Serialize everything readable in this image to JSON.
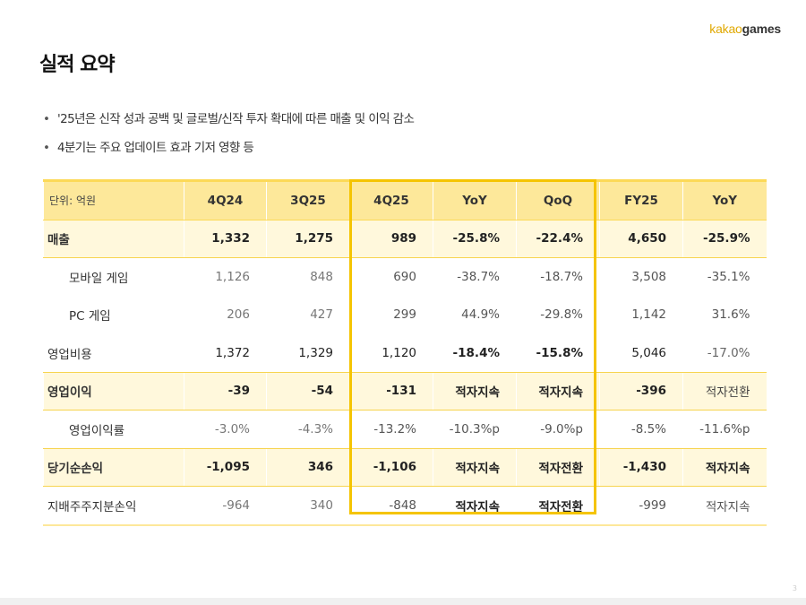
{
  "brand": {
    "logo_part1": "kakao",
    "logo_part2": "games"
  },
  "page_title": "실적 요약",
  "bullets": [
    "'25년은 신작 성과 공백 및 글로벌/신작 투자 확대에 따른 매출 및 이익 감소",
    "4분기는 주요 업데이트 효과 기저 영향 등"
  ],
  "table": {
    "unit_label": "단위: 억원",
    "columns": [
      "4Q24",
      "3Q25",
      "4Q25",
      "YoY",
      "QoQ",
      "FY25",
      "YoY"
    ],
    "rows": [
      {
        "label": "매출",
        "values": [
          "1,332",
          "1,275",
          "989",
          "-25.8%",
          "-22.4%",
          "4,650",
          "-25.9%"
        ]
      },
      {
        "label": "모바일 게임",
        "values": [
          "1,126",
          "848",
          "690",
          "-38.7%",
          "-18.7%",
          "3,508",
          "-35.1%"
        ]
      },
      {
        "label": "PC 게임",
        "values": [
          "206",
          "427",
          "299",
          "44.9%",
          "-29.8%",
          "1,142",
          "31.6%"
        ]
      },
      {
        "label": "영업비용",
        "values": [
          "1,372",
          "1,329",
          "1,120",
          "-18.4%",
          "-15.8%",
          "5,046",
          "-17.0%"
        ]
      },
      {
        "label": "영업이익",
        "values": [
          "-39",
          "-54",
          "-131",
          "적자지속",
          "적자지속",
          "-396",
          "적자전환"
        ]
      },
      {
        "label": "영업이익률",
        "values": [
          "-3.0%",
          "-4.3%",
          "-13.2%",
          "-10.3%p",
          "-9.0%p",
          "-8.5%",
          "-11.6%p"
        ]
      },
      {
        "label": "당기순손익",
        "values": [
          "-1,095",
          "346",
          "-1,106",
          "적자지속",
          "적자전환",
          "-1,430",
          "적자지속"
        ]
      },
      {
        "label": "지배주주지분손익",
        "values": [
          "-964",
          "340",
          "-848",
          "적자지속",
          "적자전환",
          "-999",
          "적자지속"
        ]
      }
    ]
  },
  "page_number": "3",
  "colors": {
    "accent": "#f5c400",
    "header_bg": "#fde89a",
    "highlight_row_bg": "#fff8dc"
  }
}
